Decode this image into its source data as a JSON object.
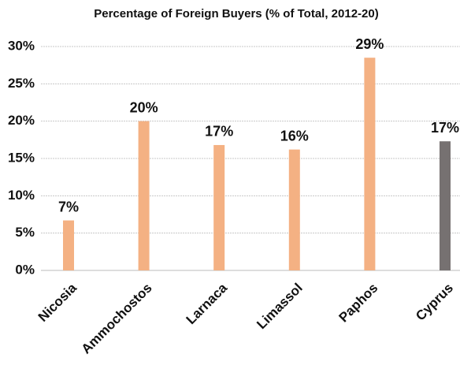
{
  "chart_data": {
    "type": "bar",
    "title": "Percentage of Foreign Buyers (% of Total, 2012-20)",
    "categories": [
      "Nicosia",
      "Ammochostos",
      "Larnaca",
      "Limassol",
      "Paphos",
      "Cyprus"
    ],
    "values": [
      6.7,
      20,
      16.8,
      16.2,
      28.5,
      17.3
    ],
    "value_labels": [
      "7%",
      "20%",
      "17%",
      "16%",
      "29%",
      "17%"
    ],
    "colors": [
      "#f4b183",
      "#f4b183",
      "#f4b183",
      "#f4b183",
      "#f4b183",
      "#767171"
    ],
    "ylim": [
      0,
      30
    ],
    "yticks": [
      {
        "value": 0,
        "label": "0%"
      },
      {
        "value": 5,
        "label": "5%"
      },
      {
        "value": 10,
        "label": "10%"
      },
      {
        "value": 15,
        "label": "15%"
      },
      {
        "value": 20,
        "label": "20%"
      },
      {
        "value": 25,
        "label": "25%"
      },
      {
        "value": 30,
        "label": "30%"
      }
    ],
    "grid": true
  }
}
